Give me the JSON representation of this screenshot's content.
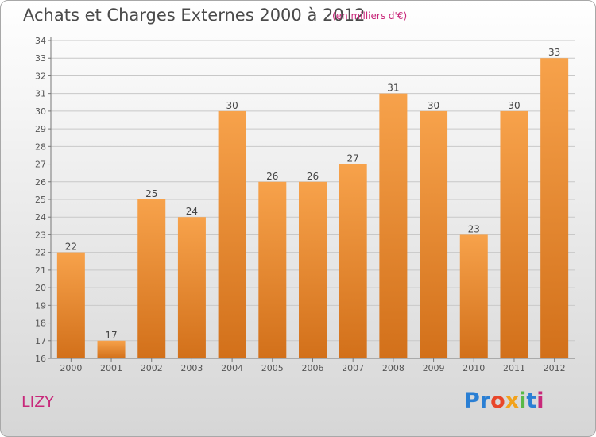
{
  "header": {
    "title": "Achats et Charges Externes 2000 à 2012",
    "subtitle": "(en milliers d'€)"
  },
  "footer": {
    "city": "LIZY",
    "logo_text": "Proxiti",
    "logo_colors": [
      "#2a7fd4",
      "#2a7fd4",
      "#e8462a",
      "#f2a21b",
      "#58b947",
      "#2a7fd4",
      "#c8287a"
    ]
  },
  "colors": {
    "bar_top": "#f7a24b",
    "bar_bottom": "#d2701a",
    "grid": "#c8c8c8"
  },
  "chart_data": {
    "type": "bar",
    "title": "Achats et Charges Externes 2000 à 2012",
    "subtitle": "(en milliers d'€)",
    "categories": [
      "2000",
      "2001",
      "2002",
      "2003",
      "2004",
      "2005",
      "2006",
      "2007",
      "2008",
      "2009",
      "2010",
      "2011",
      "2012"
    ],
    "values": [
      22,
      17,
      25,
      24,
      30,
      26,
      26,
      27,
      31,
      30,
      23,
      30,
      33
    ],
    "ylim": [
      16,
      34
    ],
    "yticks": [
      16,
      17,
      18,
      19,
      20,
      21,
      22,
      23,
      24,
      25,
      26,
      27,
      28,
      29,
      30,
      31,
      32,
      33,
      34
    ],
    "grid": true,
    "data_labels": true
  }
}
